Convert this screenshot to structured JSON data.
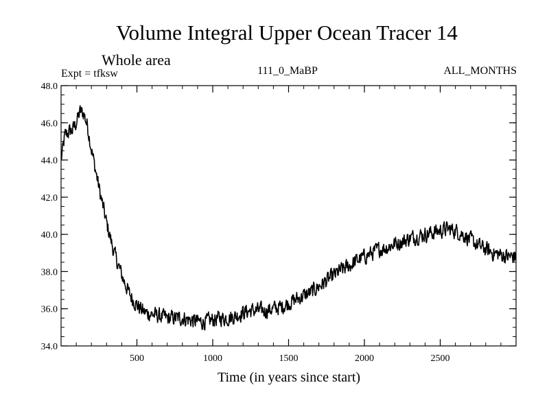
{
  "chart_data": {
    "type": "line",
    "title": "Volume Integral Upper Ocean Tracer 14",
    "subtitle": "Whole area",
    "expt_label": "Expt = tfksw",
    "center_label": "111_0_MaBP",
    "right_label": "ALL_MONTHS",
    "xlabel": "Time (in years since start)",
    "ylabel": "",
    "xlim": [
      0,
      3000
    ],
    "ylim": [
      34.0,
      48.0
    ],
    "x_ticks": [
      500,
      1000,
      1500,
      2000,
      2500
    ],
    "x_tick_labels": [
      "500",
      "1000",
      "1500",
      "2000",
      "2500"
    ],
    "y_ticks": [
      34.0,
      36.0,
      38.0,
      40.0,
      42.0,
      44.0,
      46.0,
      48.0
    ],
    "y_tick_labels": [
      "34.0",
      "36.0",
      "38.0",
      "40.0",
      "42.0",
      "44.0",
      "46.0",
      "48.0"
    ],
    "grid": false,
    "series": [
      {
        "name": "tracer14",
        "color": "#000000",
        "x": [
          0,
          25,
          50,
          75,
          100,
          125,
          150,
          175,
          200,
          250,
          300,
          350,
          400,
          450,
          500,
          550,
          600,
          650,
          700,
          750,
          800,
          850,
          900,
          950,
          1000,
          1050,
          1100,
          1150,
          1200,
          1250,
          1300,
          1350,
          1400,
          1450,
          1500,
          1550,
          1600,
          1650,
          1700,
          1750,
          1800,
          1850,
          1900,
          1950,
          2000,
          2050,
          2100,
          2150,
          2200,
          2250,
          2300,
          2350,
          2400,
          2450,
          2500,
          2550,
          2600,
          2650,
          2700,
          2750,
          2800,
          2850,
          2900,
          2950,
          3000
        ],
        "y": [
          44.0,
          45.3,
          45.5,
          45.6,
          46.0,
          46.6,
          46.5,
          45.8,
          44.6,
          42.5,
          40.6,
          39.0,
          37.8,
          36.8,
          36.2,
          35.8,
          35.7,
          35.6,
          35.5,
          35.5,
          35.5,
          35.4,
          35.3,
          35.3,
          35.4,
          35.5,
          35.5,
          35.6,
          35.8,
          35.9,
          35.9,
          35.9,
          36.0,
          36.1,
          36.3,
          36.5,
          36.7,
          36.9,
          37.2,
          37.5,
          37.8,
          38.1,
          38.3,
          38.6,
          38.8,
          39.0,
          39.2,
          39.3,
          39.5,
          39.6,
          39.8,
          39.9,
          40.0,
          40.1,
          40.2,
          40.3,
          40.2,
          40.0,
          39.7,
          39.4,
          39.2,
          39.0,
          38.9,
          38.8,
          38.8
        ]
      }
    ]
  }
}
